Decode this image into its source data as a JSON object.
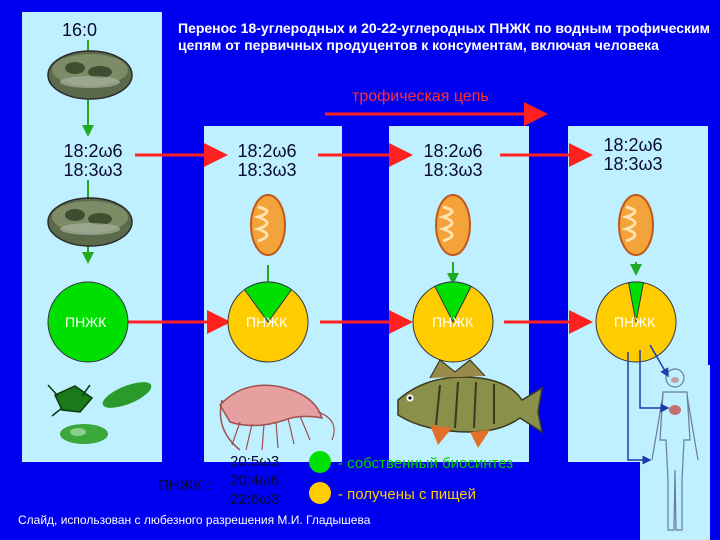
{
  "title": "Перенос 18-углеродных и 20-22-углеродных ПНЖК по водным трофическим цепям от первичных продуцентов к консументам, включая человека",
  "top_label": "16:0",
  "trophic_chain_label": "трофическая цепь",
  "fatty_acids": {
    "line1": "18:2ω6",
    "line2": "18:3ω3"
  },
  "circle_label": "ПНЖК",
  "legend": {
    "prefix": "ПНЖК :",
    "acids": [
      "20:5ω3",
      "20:4ω6",
      "22:6ω3"
    ],
    "own_biosynthesis": "- собственный биосинтез",
    "from_food": "- получены с пищей"
  },
  "credit": "Слайд, использован с любезного разрешения  М.И. Гладышева",
  "pie_fractions": [
    0,
    0.2,
    0.15,
    0.06
  ],
  "colors": {
    "background": "#0000f0",
    "panel": "#bff0ff",
    "own": "#00e000",
    "food": "#ffcc00",
    "arrow": "#ff2020",
    "title": "#ffffff"
  },
  "icons": [
    "algae-cell-icon",
    "mitochondrion-icon",
    "algae-group-icon",
    "shrimp-icon",
    "perch-fish-icon",
    "human-figure-icon"
  ]
}
